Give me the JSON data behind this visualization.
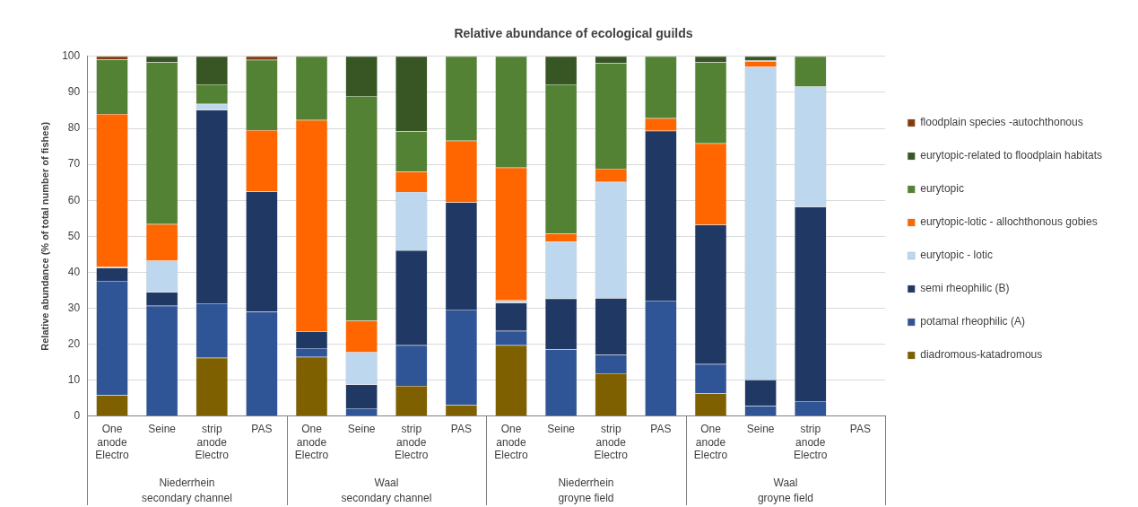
{
  "chart_data": {
    "type": "bar",
    "stacked": true,
    "title": "Relative abundance of ecological guilds",
    "ylabel": "Relative abundance (% of total number of fishes)",
    "categories": [
      "One anode Electro",
      "Seine",
      "strip anode Electro",
      "PAS",
      "One anode Electro",
      "Seine",
      "strip anode Electro",
      "PAS",
      "One anode Electro",
      "Seine",
      "strip anode Electro",
      "PAS",
      "One anode Electro",
      "Seine",
      "strip anode Electro",
      "PAS"
    ],
    "series": [
      {
        "name": "diadromous-katadromous",
        "color": "#7f6000",
        "values": [
          5.8,
          0,
          16.2,
          0,
          16.5,
          0,
          8.4,
          3.1,
          19.7,
          0,
          11.9,
          0,
          6.4,
          0,
          0,
          null
        ]
      },
      {
        "name": "potamal rheophilic (A)",
        "color": "#2f5597",
        "values": [
          31.8,
          30.7,
          15.2,
          29.0,
          2.4,
          2.2,
          11.3,
          26.5,
          4.0,
          18.5,
          5.2,
          32.1,
          8.1,
          2.9,
          4.2,
          null
        ]
      },
      {
        "name": "semi rheophilic (B)",
        "color": "#203864",
        "values": [
          3.6,
          3.8,
          53.7,
          33.4,
          4.7,
          6.6,
          26.4,
          29.8,
          7.8,
          14.2,
          15.7,
          47.2,
          38.7,
          7.2,
          54.0,
          null
        ]
      },
      {
        "name": "eurytopic - lotic",
        "color": "#bdd7ee",
        "values": [
          0.3,
          8.7,
          1.7,
          0,
          0,
          9.0,
          16.2,
          0,
          0.7,
          15.8,
          32.3,
          0,
          0,
          87.0,
          33.4,
          null
        ]
      },
      {
        "name": "eurytopic-lotic - allochthonous gobies",
        "color": "#ff6600",
        "values": [
          42.5,
          10.2,
          0,
          17.1,
          58.7,
          8.8,
          5.6,
          17.2,
          36.9,
          2.2,
          3.7,
          3.5,
          22.6,
          1.5,
          0,
          null
        ]
      },
      {
        "name": "eurytopic",
        "color": "#548235",
        "values": [
          15.1,
          45.0,
          5.4,
          19.5,
          17.7,
          62.4,
          11.3,
          23.4,
          30.9,
          41.5,
          29.3,
          17.2,
          22.6,
          0.2,
          8.4,
          null
        ]
      },
      {
        "name": "eurytopic-related to floodplain habitats",
        "color": "#375623",
        "values": [
          0,
          1.6,
          7.8,
          0,
          0,
          11.0,
          20.8,
          0,
          0,
          7.8,
          1.9,
          0,
          1.6,
          1.2,
          0,
          null
        ]
      },
      {
        "name": "floodplain species -autochthonous",
        "color": "#843c0c",
        "values": [
          0.9,
          0,
          0,
          1.0,
          0,
          0,
          0,
          0,
          0,
          0,
          0,
          0,
          0,
          0,
          0,
          null
        ]
      }
    ],
    "ylim": [
      0,
      100
    ],
    "yticks": [
      0,
      10,
      20,
      30,
      40,
      50,
      60,
      70,
      80,
      90,
      100
    ],
    "grid": "y",
    "legend": "right",
    "annotations": [
      "Niederrhein secondary channel",
      "Waal secondary channel",
      "Niederrhein groyne field",
      "Waal groyne field"
    ]
  }
}
